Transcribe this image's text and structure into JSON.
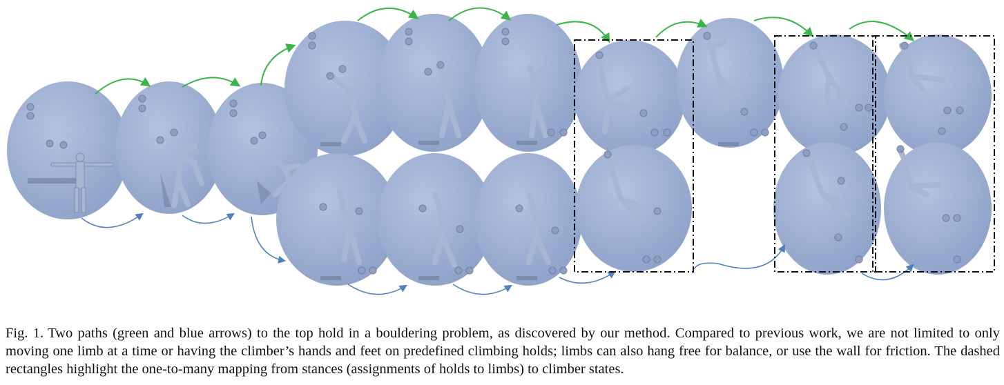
{
  "figure": {
    "colors": {
      "wall": "#9fb1d3",
      "wall_edge": "#8497bf",
      "hold": "#8e9fc2",
      "climber": "#a8b6d4",
      "shadow": "#6d7b99",
      "green_arrow": "#3bb54a",
      "blue_arrow": "#4f81bd",
      "dash_box": "#111111"
    },
    "green_path_states": 10,
    "blue_path_states": 10,
    "dashed_groups": 3
  },
  "caption": {
    "label": "Fig. 1.",
    "text": "Two paths (green and blue arrows) to the top hold in a bouldering problem, as discovered by our method. Compared to previous work, we are not limited to only moving one limb at a time or having the climber’s hands and feet on predefined climbing holds; limbs can also hang free for balance, or use the wall for friction. The dashed rectangles highlight the one-to-many mapping from stances (assignments of holds to limbs) to climber states."
  }
}
